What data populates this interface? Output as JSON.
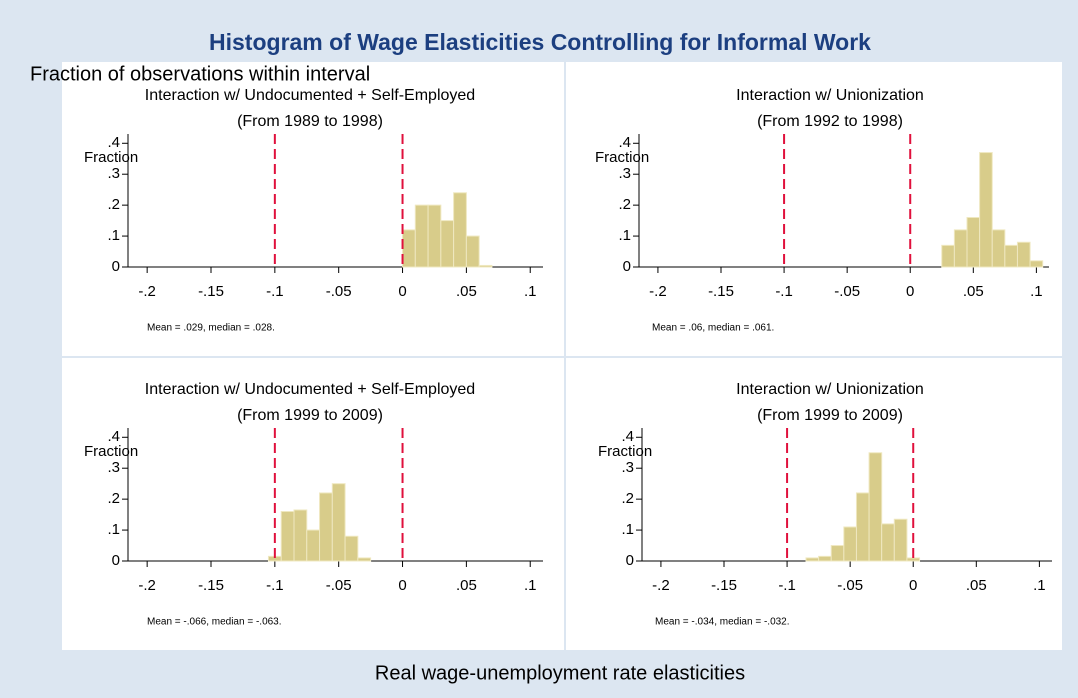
{
  "title": "Histogram of Wage Elasticities Controlling for Informal Work",
  "ylabel": "Fraction of observations within interval",
  "xlabel": "Real wage-unemployment rate elasticities",
  "chart_data": [
    {
      "type": "histogram",
      "title": "Interaction w/ Undocumented + Self-Employed",
      "subtitle": "(From 1989 to 1998)",
      "ylabel": "Fraction",
      "note": "Mean =  .029, median = .028.",
      "color": "#d8cc8a",
      "bins": [
        0,
        0.01,
        0.02,
        0.03,
        0.04,
        0.05,
        0.06,
        0.07
      ],
      "values": [
        0.12,
        0.2,
        0.2,
        0.15,
        0.24,
        0.1,
        0.005
      ],
      "reference_lines": [
        -0.1,
        0
      ],
      "reference_color": "#e0103c",
      "xlim": [
        -0.215,
        0.11
      ],
      "xticks": [
        {
          "value": -0.2,
          "label": "-.2"
        },
        {
          "value": -0.15,
          "label": "-.15"
        },
        {
          "value": -0.1,
          "label": "-.1"
        },
        {
          "value": -0.05,
          "label": "-.05"
        },
        0,
        {
          "value": 0.05,
          "label": ".05"
        },
        {
          "value": 0.1,
          "label": ".1"
        }
      ],
      "ylim": [
        0,
        0.43
      ],
      "yticks": [
        0,
        {
          "value": 0.1,
          "label": ".1"
        },
        {
          "value": 0.2,
          "label": ".2"
        },
        {
          "value": 0.3,
          "label": ".3"
        },
        {
          "value": 0.4,
          "label": ".4"
        }
      ]
    },
    {
      "type": "histogram",
      "title": "Interaction w/ Unionization",
      "subtitle": "(From 1992 to 1998)",
      "ylabel": "Fraction",
      "note": "Mean =  .06, median = .061.",
      "color": "#d8cc8a",
      "bins": [
        0.025,
        0.035,
        0.045,
        0.055,
        0.065,
        0.075,
        0.085,
        0.095,
        0.105
      ],
      "values": [
        0.07,
        0.12,
        0.16,
        0.37,
        0.12,
        0.07,
        0.08,
        0.02
      ],
      "reference_lines": [
        -0.1,
        0
      ],
      "reference_color": "#e0103c",
      "xlim": [
        -0.215,
        0.11
      ],
      "xticks": [
        {
          "value": -0.2,
          "label": "-.2"
        },
        {
          "value": -0.15,
          "label": "-.15"
        },
        {
          "value": -0.1,
          "label": "-.1"
        },
        {
          "value": -0.05,
          "label": "-.05"
        },
        0,
        {
          "value": 0.05,
          "label": ".05"
        },
        {
          "value": 0.1,
          "label": ".1"
        }
      ],
      "ylim": [
        0,
        0.43
      ],
      "yticks": [
        0,
        {
          "value": 0.1,
          "label": ".1"
        },
        {
          "value": 0.2,
          "label": ".2"
        },
        {
          "value": 0.3,
          "label": ".3"
        },
        {
          "value": 0.4,
          "label": ".4"
        }
      ]
    },
    {
      "type": "histogram",
      "title": "Interaction w/ Undocumented + Self-Employed",
      "subtitle": "(From 1999 to 2009)",
      "ylabel": "Fraction",
      "note": "Mean =  -.066, median = -.063.",
      "color": "#d8cc8a",
      "bins": [
        -0.105,
        -0.095,
        -0.085,
        -0.075,
        -0.065,
        -0.055,
        -0.045,
        -0.035,
        -0.025
      ],
      "values": [
        0.015,
        0.16,
        0.165,
        0.1,
        0.22,
        0.25,
        0.08,
        0.01
      ],
      "reference_lines": [
        -0.1,
        0
      ],
      "reference_color": "#e0103c",
      "xlim": [
        -0.215,
        0.11
      ],
      "xticks": [
        {
          "value": -0.2,
          "label": "-.2"
        },
        {
          "value": -0.15,
          "label": "-.15"
        },
        {
          "value": -0.1,
          "label": "-.1"
        },
        {
          "value": -0.05,
          "label": "-.05"
        },
        0,
        {
          "value": 0.05,
          "label": ".05"
        },
        {
          "value": 0.1,
          "label": ".1"
        }
      ],
      "ylim": [
        0,
        0.43
      ],
      "yticks": [
        0,
        {
          "value": 0.1,
          "label": ".1"
        },
        {
          "value": 0.2,
          "label": ".2"
        },
        {
          "value": 0.3,
          "label": ".3"
        },
        {
          "value": 0.4,
          "label": ".4"
        }
      ]
    },
    {
      "type": "histogram",
      "title": "Interaction w/ Unionization",
      "subtitle": "(From 1999 to 2009)",
      "ylabel": "Fraction",
      "note": "Mean =  -.034, median = -.032.",
      "color": "#d8cc8a",
      "bins": [
        -0.085,
        -0.075,
        -0.065,
        -0.055,
        -0.045,
        -0.035,
        -0.025,
        -0.015,
        -0.005,
        0.005
      ],
      "values": [
        0.01,
        0.015,
        0.05,
        0.11,
        0.22,
        0.35,
        0.12,
        0.135,
        0.01
      ],
      "reference_lines": [
        -0.1,
        0
      ],
      "reference_color": "#e0103c",
      "xlim": [
        -0.215,
        0.11
      ],
      "xticks": [
        {
          "value": -0.2,
          "label": "-.2"
        },
        {
          "value": -0.15,
          "label": "-.15"
        },
        {
          "value": -0.1,
          "label": "-.1"
        },
        {
          "value": -0.05,
          "label": "-.05"
        },
        0,
        {
          "value": 0.05,
          "label": ".05"
        },
        {
          "value": 0.1,
          "label": ".1"
        }
      ],
      "ylim": [
        0,
        0.43
      ],
      "yticks": [
        0,
        {
          "value": 0.1,
          "label": ".1"
        },
        {
          "value": 0.2,
          "label": ".2"
        },
        {
          "value": 0.3,
          "label": ".3"
        },
        {
          "value": 0.4,
          "label": ".4"
        }
      ]
    }
  ]
}
